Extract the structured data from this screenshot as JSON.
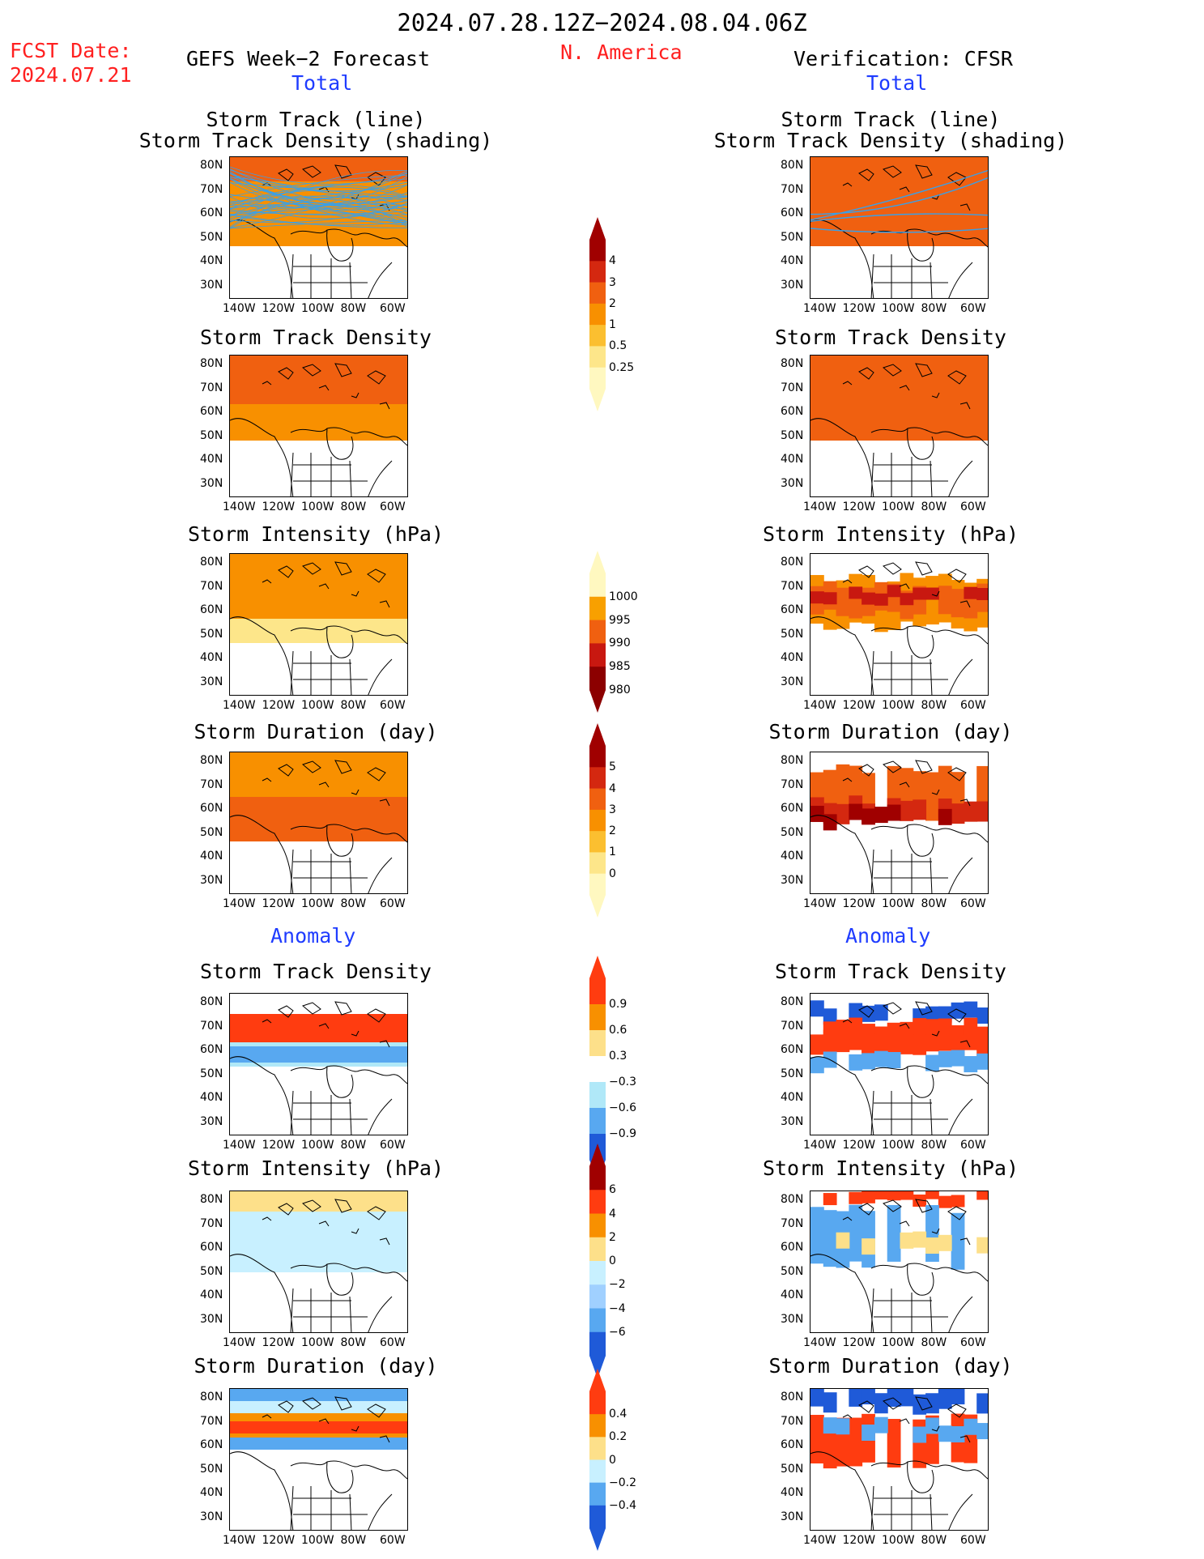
{
  "header": {
    "date_range": "2024.07.28.12Z−2024.08.04.06Z",
    "fcst_label": "FCST Date:",
    "fcst_date": "2024.07.21",
    "left_title": "GEFS Week−2 Forecast",
    "region": "N. America",
    "right_title": "Verification: CFSR",
    "total_label": "Total",
    "anomaly_label": "Anomaly"
  },
  "panels": [
    {
      "title1": "Storm Track (line)",
      "title2": "Storm Track Density (shading)"
    },
    {
      "title1": "Storm Track Density"
    },
    {
      "title1": "Storm Intensity (hPa)"
    },
    {
      "title1": "Storm Duration (day)"
    },
    {
      "title1": "Storm Track Density"
    },
    {
      "title1": "Storm Intensity (hPa)"
    },
    {
      "title1": "Storm Duration (day)"
    }
  ],
  "axes": {
    "lat_ticks": [
      "80N",
      "70N",
      "60N",
      "50N",
      "40N",
      "30N"
    ],
    "lon_ticks": [
      "140W",
      "120W",
      "100W",
      "80W",
      "60W"
    ]
  },
  "colorbars": [
    {
      "name": "density",
      "ticks": [
        "4",
        "3",
        "2",
        "1",
        "0.5",
        "0.25"
      ],
      "colors": [
        "#a00000",
        "#d42810",
        "#f06010",
        "#f89000",
        "#fbbf30",
        "#fde68a",
        "#fff8c0"
      ]
    },
    {
      "name": "intensity",
      "ticks": [
        "1000",
        "995",
        "990",
        "985",
        "980"
      ],
      "colors": [
        "#fff8c0",
        "#f8a000",
        "#f06010",
        "#c81810",
        "#8c0000"
      ]
    },
    {
      "name": "duration",
      "ticks": [
        "5",
        "4",
        "3",
        "2",
        "1",
        "0"
      ],
      "colors": [
        "#a00000",
        "#d42810",
        "#f06010",
        "#f89000",
        "#fbbf30",
        "#fde68a",
        "#fff8c0"
      ]
    },
    {
      "name": "density_anom",
      "ticks": [
        "0.9",
        "0.6",
        "0.3",
        "−0.3",
        "−0.6",
        "−0.9"
      ],
      "colors": [
        "#ff3c10",
        "#f89000",
        "#fde08a",
        "#ffffff",
        "#b0e8f8",
        "#58a8f0",
        "#1f5ad8"
      ]
    },
    {
      "name": "intensity_anom",
      "ticks": [
        "6",
        "4",
        "2",
        "0",
        "−2",
        "−4",
        "−6"
      ],
      "colors": [
        "#a00000",
        "#ff3c10",
        "#f89000",
        "#fde08a",
        "#c8f0ff",
        "#a0d0ff",
        "#58a8f0",
        "#1f5ad8"
      ]
    },
    {
      "name": "duration_anom",
      "ticks": [
        "0.4",
        "0.2",
        "0",
        "−0.2",
        "−0.4"
      ],
      "colors": [
        "#ff3c10",
        "#f89000",
        "#fde08a",
        "#c8f0ff",
        "#58a8f0",
        "#1f5ad8"
      ]
    }
  ]
}
